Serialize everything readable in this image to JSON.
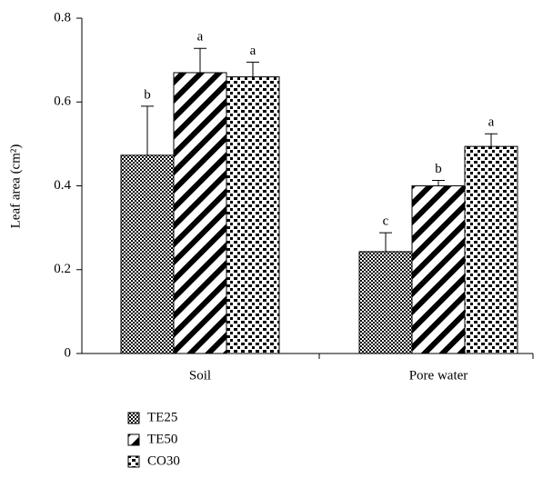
{
  "chart_data": {
    "type": "bar",
    "ylabel": "Leaf area (cm²)",
    "categories": [
      "Soil",
      "Pore water"
    ],
    "series": [
      {
        "name": "TE25",
        "color": "#000000",
        "pattern": "checker",
        "values": [
          0.473,
          0.243
        ],
        "errors": [
          0.117,
          0.045
        ],
        "labels": [
          "b",
          "c"
        ]
      },
      {
        "name": "TE50",
        "color": "#000000",
        "pattern": "stripes",
        "values": [
          0.67,
          0.4
        ],
        "errors": [
          0.058,
          0.013
        ],
        "labels": [
          "a",
          "b"
        ]
      },
      {
        "name": "CO30",
        "color": "#000000",
        "pattern": "dots",
        "values": [
          0.66,
          0.494
        ],
        "errors": [
          0.035,
          0.03
        ],
        "labels": [
          "a",
          "a"
        ]
      }
    ],
    "ylim": [
      0,
      0.8
    ],
    "yticks": [
      0,
      0.2,
      0.4,
      0.6,
      0.8
    ],
    "grid": false
  }
}
